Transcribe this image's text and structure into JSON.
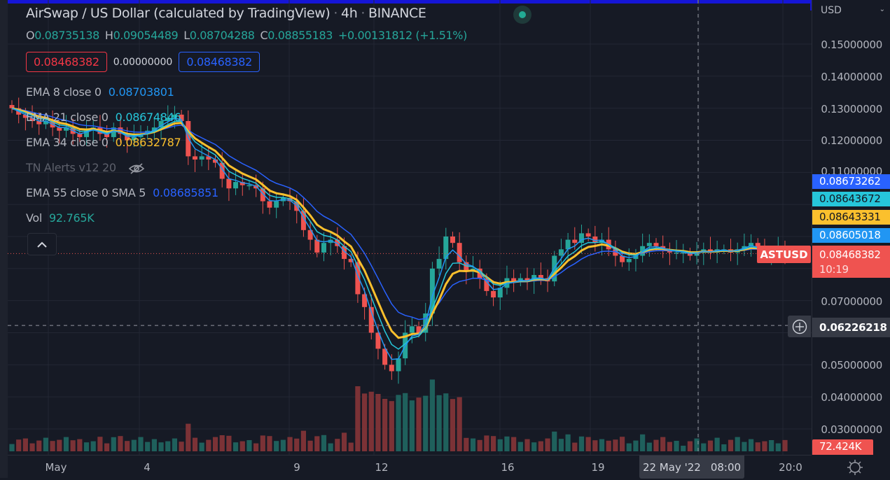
{
  "header": {
    "symbol_name": "AirSwap / US Dollar (calculated by TradingView)",
    "interval": "4h",
    "exchange": "BINANCE",
    "live_status_icon": "market-open-dot"
  },
  "ohlc": {
    "open_label": "O",
    "open": "0.08735138",
    "high_label": "H",
    "high": "0.09054489",
    "low_label": "L",
    "low": "0.08704288",
    "close_label": "C",
    "close": "0.08855183",
    "change": "+0.00131812 (+1.51%)"
  },
  "order_boxes": {
    "sell": "0.08468382",
    "spread": "0.00000000",
    "buy": "0.08468382"
  },
  "indicators": [
    {
      "label": "EMA 8 close 0",
      "value": "0.08703801",
      "color": "#2196f3"
    },
    {
      "label": "EMA 21 close 0",
      "value": "0.08674846",
      "color": "#26c6da"
    },
    {
      "label": "EMA 34 close 0",
      "value": "0.08632787",
      "color": "#fbc02d"
    },
    {
      "label": "TN Alerts v12 20",
      "value": "",
      "color": "#5d606b",
      "hidden_icon": "eye-off-icon"
    },
    {
      "label": "EMA 55 close 0 SMA 5",
      "value": "0.08685851",
      "color": "#2962ff"
    },
    {
      "label": "Vol",
      "value": "92.765K",
      "color": "#26a69a"
    }
  ],
  "price_axis": {
    "currency": "USD",
    "ticks": [
      "0.15000000",
      "0.14000000",
      "0.13000000",
      "0.12000000",
      "0.11000000",
      "0.07000000",
      "0.05000000",
      "0.04000000",
      "0.03000000"
    ],
    "labels": [
      {
        "value": "0.08673262",
        "bg": "#2962ff",
        "fg": "#ffffff"
      },
      {
        "value": "0.08643672",
        "bg": "#26c6da",
        "fg": "#131722"
      },
      {
        "value": "0.08643331",
        "bg": "#fbc02d",
        "fg": "#131722"
      },
      {
        "value": "0.08605018",
        "bg": "#2196f3",
        "fg": "#ffffff"
      },
      {
        "value": "0.08468382",
        "bg": "#ef5350",
        "fg": "#ffffff"
      }
    ],
    "countdown": "10:19",
    "crosshair_price": "0.06226218",
    "volume_label": "72.424K",
    "symbol_tag": "ASTUSD"
  },
  "time_axis": {
    "labels": [
      "May",
      "4",
      "9",
      "12",
      "16",
      "19",
      "20:0"
    ],
    "crosshair_date": "22 May '22",
    "crosshair_time": "08:00",
    "settings_icon": "gear-icon"
  },
  "colors": {
    "up": "#26a69a",
    "down": "#ef5350",
    "vol_up": "#1f605c",
    "vol_down": "#7b3236",
    "background": "#161a25",
    "grid": "#232734"
  },
  "chart_data": {
    "type": "candlestick",
    "title": "AirSwap / US Dollar (calculated by TradingView) · 4h · BINANCE",
    "xlabel": "",
    "ylabel": "USD",
    "ylim": [
      0.025,
      0.155
    ],
    "x_ticks": [
      "May",
      "4",
      "9",
      "12",
      "16",
      "19",
      "22 May '22 08:00",
      "20:0"
    ],
    "last_price": 0.08468382,
    "crosshair_price": 0.06226218,
    "series": [
      {
        "name": "EMA 8 close 0",
        "last": 0.08605018
      },
      {
        "name": "EMA 21 close 0",
        "last": 0.08643672
      },
      {
        "name": "EMA 34 close 0",
        "last": 0.08643331
      },
      {
        "name": "EMA 55 close 0 SMA 5",
        "last": 0.08673262
      },
      {
        "name": "Volume",
        "last": 72424
      }
    ],
    "closes_approx": [
      0.13,
      0.128,
      0.127,
      0.126,
      0.125,
      0.126,
      0.124,
      0.123,
      0.124,
      0.122,
      0.121,
      0.123,
      0.124,
      0.122,
      0.121,
      0.124,
      0.122,
      0.12,
      0.121,
      0.122,
      0.123,
      0.124,
      0.126,
      0.127,
      0.128,
      0.126,
      0.115,
      0.114,
      0.115,
      0.114,
      0.113,
      0.108,
      0.105,
      0.107,
      0.106,
      0.106,
      0.105,
      0.101,
      0.099,
      0.101,
      0.102,
      0.101,
      0.098,
      0.092,
      0.089,
      0.085,
      0.088,
      0.089,
      0.087,
      0.083,
      0.082,
      0.072,
      0.068,
      0.06,
      0.055,
      0.05,
      0.048,
      0.052,
      0.06,
      0.062,
      0.06,
      0.066,
      0.08,
      0.083,
      0.09,
      0.088,
      0.082,
      0.079,
      0.08,
      0.077,
      0.073,
      0.071,
      0.074,
      0.077,
      0.076,
      0.077,
      0.076,
      0.078,
      0.077,
      0.076,
      0.084,
      0.086,
      0.089,
      0.088,
      0.091,
      0.09,
      0.088,
      0.089,
      0.086,
      0.084,
      0.082,
      0.083,
      0.084,
      0.087,
      0.088,
      0.087,
      0.086,
      0.085,
      0.085,
      0.085,
      0.084,
      0.085,
      0.086,
      0.085,
      0.086,
      0.086,
      0.085,
      0.086,
      0.087,
      0.088,
      0.086,
      0.085,
      0.085,
      0.086,
      0.0847
    ]
  }
}
